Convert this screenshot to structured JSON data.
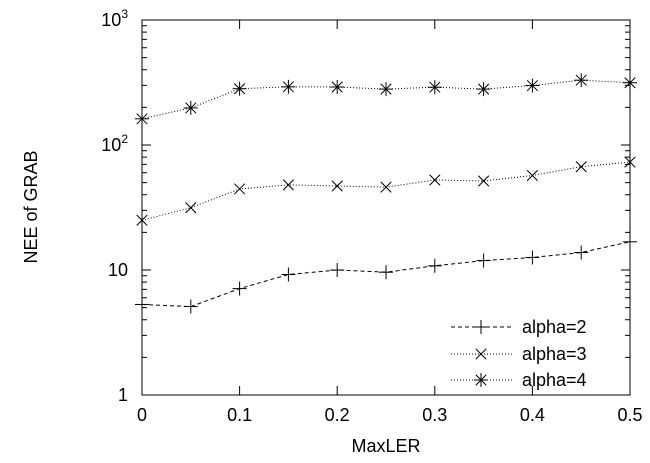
{
  "chart_data": {
    "type": "line",
    "xlabel": "MaxLER",
    "ylabel": "NEE of GRAB",
    "xlim": [
      0,
      0.5
    ],
    "ylim": [
      1,
      1000
    ],
    "yscale": "log",
    "grid": false,
    "legend_position": "bottom-right",
    "x": [
      0,
      0.05,
      0.1,
      0.15,
      0.2,
      0.25,
      0.3,
      0.35,
      0.4,
      0.45,
      0.5
    ],
    "x_tick_labels": [
      "0",
      "0.1",
      "0.2",
      "0.3",
      "0.4",
      "0.5"
    ],
    "y_ticks": [
      {
        "value": 1,
        "base": "1",
        "exp": ""
      },
      {
        "value": 10,
        "base": "10",
        "exp": ""
      },
      {
        "value": 100,
        "base": "10",
        "exp": "2"
      },
      {
        "value": 1000,
        "base": "10",
        "exp": "3"
      }
    ],
    "series": [
      {
        "name": "alpha=2",
        "marker": "plus",
        "dash": "dashed",
        "values": [
          5.3,
          5.1,
          7.1,
          9.2,
          10.0,
          9.6,
          10.8,
          11.9,
          12.6,
          13.8,
          16.8
        ]
      },
      {
        "name": "alpha=3",
        "marker": "x",
        "dash": "dotted",
        "values": [
          25,
          31.5,
          44.5,
          48,
          47,
          46,
          52.5,
          51.5,
          57,
          67,
          73
        ]
      },
      {
        "name": "alpha=4",
        "marker": "star",
        "dash": "dotted",
        "values": [
          162,
          198,
          282,
          292,
          291,
          280,
          290,
          280,
          299,
          330,
          315
        ]
      }
    ]
  }
}
